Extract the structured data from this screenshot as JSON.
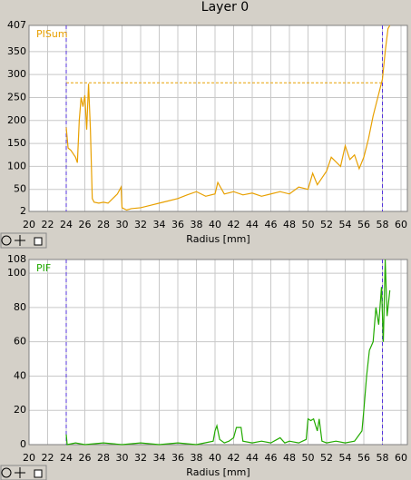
{
  "window_title": "Layer 0",
  "chart_data": [
    {
      "type": "line",
      "xlabel": "Radius [mm]",
      "xlim": [
        20,
        60
      ],
      "xticks": [
        20,
        22,
        24,
        26,
        28,
        30,
        32,
        34,
        36,
        38,
        40,
        42,
        44,
        46,
        48,
        50,
        52,
        54,
        56,
        58,
        60
      ],
      "ylim": [
        2,
        407
      ],
      "yticks": [
        2,
        50,
        100,
        150,
        200,
        250,
        300,
        350,
        407
      ],
      "grid": true,
      "vlines": [
        24,
        58
      ],
      "vline_color": "#5533dd",
      "hline": 282,
      "hline_x": [
        24,
        58
      ],
      "x": [
        24.0,
        24.2,
        24.5,
        25.0,
        25.2,
        25.4,
        25.6,
        25.8,
        26.0,
        26.2,
        26.4,
        26.6,
        26.8,
        27.0,
        27.5,
        28.0,
        28.5,
        29.0,
        29.5,
        29.9,
        30.0,
        30.5,
        31.0,
        32.0,
        33.0,
        34.0,
        35.0,
        36.0,
        37.0,
        38.0,
        39.0,
        40.0,
        40.3,
        41.0,
        42.0,
        43.0,
        44.0,
        45.0,
        46.0,
        47.0,
        48.0,
        49.0,
        50.0,
        50.5,
        51.0,
        51.5,
        52.0,
        52.5,
        53.0,
        53.5,
        54.0,
        54.5,
        55.0,
        55.5,
        56.0,
        56.5,
        57.0,
        57.5,
        58.0,
        58.3,
        58.6,
        58.8
      ],
      "series": [
        {
          "name": "PISum",
          "color": "#e8a000",
          "values": [
            185,
            140,
            135,
            120,
            108,
            200,
            250,
            230,
            255,
            180,
            280,
            180,
            30,
            22,
            20,
            22,
            20,
            30,
            40,
            55,
            10,
            5,
            8,
            10,
            15,
            20,
            25,
            30,
            38,
            45,
            35,
            40,
            65,
            40,
            45,
            38,
            42,
            35,
            40,
            45,
            40,
            55,
            50,
            85,
            60,
            75,
            90,
            120,
            110,
            100,
            145,
            115,
            125,
            95,
            120,
            160,
            210,
            250,
            290,
            350,
            400,
            407
          ]
        }
      ]
    },
    {
      "type": "line",
      "xlabel": "Radius [mm]",
      "xlim": [
        20,
        60
      ],
      "xticks": [
        20,
        22,
        24,
        26,
        28,
        30,
        32,
        34,
        36,
        38,
        40,
        42,
        44,
        46,
        48,
        50,
        52,
        54,
        56,
        58,
        60
      ],
      "ylim": [
        0,
        108
      ],
      "yticks": [
        0,
        20,
        40,
        60,
        80,
        100,
        108
      ],
      "grid": true,
      "vlines": [
        24,
        58
      ],
      "vline_color": "#5533dd",
      "x": [
        24.0,
        24.1,
        25,
        26,
        28,
        30,
        32,
        34,
        36,
        38,
        39.8,
        40,
        40.2,
        40.5,
        41,
        41.5,
        42,
        42.3,
        42.8,
        43,
        44,
        45,
        46,
        47,
        47.5,
        48,
        49,
        49.8,
        50,
        50.3,
        50.6,
        51,
        51.2,
        51.5,
        52,
        53,
        54,
        55,
        55.8,
        56,
        56.3,
        56.6,
        57,
        57.3,
        57.6,
        57.9,
        58.1,
        58.3,
        58.5,
        58.8
      ],
      "series": [
        {
          "name": "PIF",
          "color": "#22aa00",
          "values": [
            6,
            0,
            1,
            0,
            1,
            0,
            1,
            0,
            1,
            0,
            2,
            8,
            11,
            3,
            1,
            2,
            4,
            10,
            10,
            2,
            1,
            2,
            1,
            4,
            1,
            2,
            1,
            3,
            15,
            14,
            15,
            8,
            15,
            2,
            1,
            2,
            1,
            2,
            8,
            20,
            40,
            55,
            60,
            80,
            70,
            92,
            60,
            108,
            75,
            90
          ]
        }
      ]
    }
  ]
}
